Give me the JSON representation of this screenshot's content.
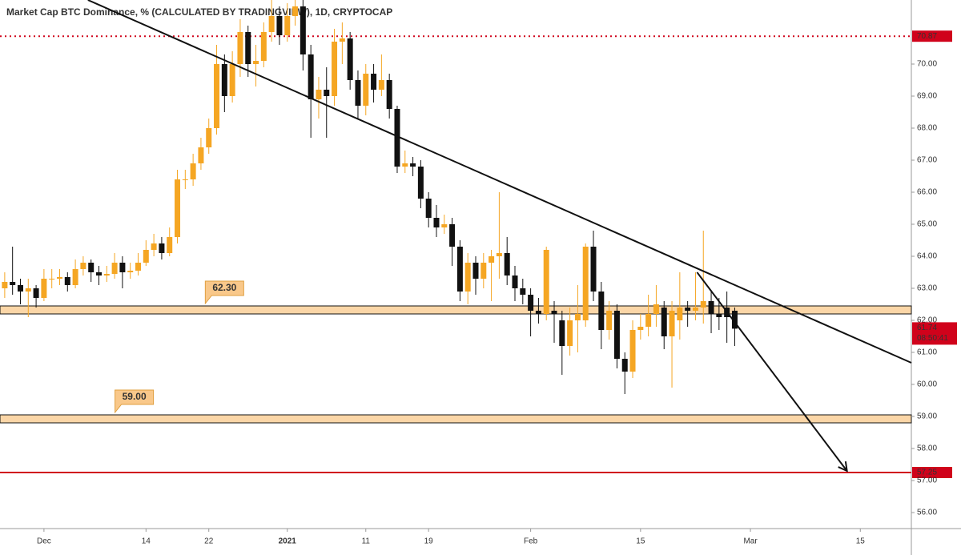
{
  "chart_data": {
    "type": "candlestick",
    "title": "Market Cap BTC Dominance, % (CALCULATED BY TRADINGVIEW), 1D, CRYPTOCAP",
    "up_color": "#f5a623",
    "down_color": "#111111",
    "x": [
      -5,
      -4,
      -3,
      -2,
      -1,
      0,
      1,
      2,
      3,
      4,
      5,
      6,
      7,
      8,
      9,
      10,
      11,
      12,
      13,
      14,
      15,
      16,
      17,
      18,
      19,
      20,
      21,
      22,
      23,
      24,
      25,
      26,
      27,
      28,
      29,
      30,
      31,
      32,
      33,
      34,
      35,
      36,
      37,
      38,
      39,
      40,
      41,
      42,
      43,
      44,
      45,
      46,
      47,
      48,
      49,
      50,
      51,
      52,
      53,
      54,
      55,
      56,
      57,
      58,
      59,
      60,
      61,
      62,
      63,
      64,
      65,
      66,
      67,
      68,
      69,
      70,
      71,
      72,
      73,
      74,
      75,
      76,
      77,
      78,
      79,
      80,
      81,
      82,
      83,
      84,
      85,
      86,
      87,
      88
    ],
    "open": [
      63.0,
      63.2,
      63.1,
      62.9,
      63.0,
      62.7,
      63.3,
      63.3,
      63.35,
      63.1,
      63.6,
      63.8,
      63.5,
      63.4,
      63.45,
      63.8,
      63.5,
      63.55,
      63.8,
      64.2,
      64.4,
      64.1,
      64.6,
      66.4,
      66.4,
      66.9,
      67.4,
      68.0,
      70.0,
      69.0,
      70.0,
      71.0,
      70.0,
      70.1,
      71.0,
      71.5,
      70.9,
      71.5,
      71.8,
      70.3,
      68.9,
      69.2,
      69.0,
      70.7,
      70.8,
      69.5,
      68.7,
      69.7,
      69.2,
      69.5,
      68.6,
      66.8,
      66.9,
      66.8,
      65.8,
      65.2,
      64.9,
      65.0,
      64.3,
      62.9,
      63.8,
      63.3,
      63.8,
      64.0,
      64.1,
      63.4,
      63.0,
      62.8,
      62.3,
      62.2,
      62.3,
      62.0,
      61.2,
      62.0,
      62.0,
      64.3,
      62.9,
      61.7,
      62.3,
      60.8,
      60.4,
      61.7,
      61.8,
      62.2,
      62.4,
      61.5,
      62.0,
      62.4,
      62.3,
      62.4,
      62.6,
      62.2,
      62.4,
      62.3
    ],
    "close": [
      63.2,
      63.1,
      62.9,
      63.0,
      62.7,
      63.3,
      63.3,
      63.35,
      63.1,
      63.6,
      63.8,
      63.5,
      63.4,
      63.45,
      63.8,
      63.5,
      63.55,
      63.8,
      64.2,
      64.4,
      64.1,
      64.6,
      66.4,
      66.4,
      66.9,
      67.4,
      68.0,
      70.0,
      69.0,
      70.0,
      71.0,
      70.0,
      70.1,
      71.0,
      71.5,
      70.9,
      71.5,
      71.8,
      70.3,
      68.9,
      69.2,
      69.0,
      70.7,
      70.8,
      69.5,
      68.7,
      69.7,
      69.2,
      69.5,
      68.6,
      66.8,
      66.9,
      66.8,
      65.8,
      65.2,
      64.9,
      65.0,
      64.3,
      62.9,
      63.8,
      63.3,
      63.8,
      64.0,
      64.1,
      63.4,
      63.0,
      62.8,
      62.3,
      62.2,
      64.2,
      62.2,
      61.2,
      62.0,
      62.2,
      64.3,
      62.9,
      61.7,
      62.3,
      60.8,
      60.4,
      61.7,
      61.8,
      62.2,
      62.5,
      61.5,
      62.3,
      62.4,
      62.3,
      62.4,
      62.6,
      62.2,
      62.1,
      62.1,
      61.74
    ],
    "high": [
      63.5,
      64.3,
      63.3,
      63.3,
      63.1,
      63.6,
      63.6,
      63.6,
      63.5,
      63.9,
      64.0,
      63.9,
      63.7,
      63.7,
      64.1,
      64.0,
      63.8,
      64.1,
      64.5,
      64.7,
      64.6,
      64.9,
      66.7,
      66.7,
      67.2,
      67.7,
      68.3,
      70.6,
      70.3,
      70.4,
      71.4,
      71.2,
      70.6,
      71.3,
      72.0,
      71.8,
      71.9,
      72.0,
      72.0,
      70.6,
      69.6,
      69.9,
      71.1,
      71.3,
      71.0,
      69.8,
      70.0,
      70.0,
      70.3,
      69.7,
      68.7,
      67.3,
      67.1,
      67.0,
      66.0,
      65.6,
      65.3,
      65.2,
      64.5,
      64.1,
      64.0,
      64.1,
      64.2,
      66.0,
      64.6,
      63.7,
      63.3,
      63.0,
      62.7,
      64.3,
      62.6,
      62.3,
      62.4,
      63.1,
      64.4,
      64.8,
      63.2,
      62.6,
      62.5,
      61.0,
      62.0,
      62.2,
      62.8,
      63.1,
      62.6,
      62.6,
      63.5,
      62.6,
      63.5,
      64.8,
      62.9,
      62.7,
      62.9,
      62.4
    ],
    "low": [
      62.7,
      62.8,
      62.5,
      62.1,
      62.4,
      62.6,
      63.0,
      63.1,
      62.9,
      63.0,
      63.4,
      63.2,
      63.1,
      63.2,
      63.3,
      63.0,
      63.3,
      63.4,
      63.7,
      64.0,
      63.9,
      64.0,
      64.4,
      66.1,
      66.2,
      66.7,
      67.2,
      67.8,
      68.5,
      68.8,
      69.6,
      69.6,
      69.3,
      69.9,
      70.7,
      70.6,
      70.7,
      71.2,
      69.8,
      67.7,
      68.3,
      67.7,
      68.7,
      70.0,
      69.2,
      68.3,
      68.4,
      68.8,
      69.0,
      68.3,
      66.6,
      66.6,
      66.5,
      65.5,
      64.9,
      64.6,
      64.7,
      63.7,
      62.6,
      62.5,
      62.8,
      63.0,
      62.6,
      63.3,
      63.1,
      62.6,
      62.5,
      61.5,
      61.9,
      62.0,
      61.3,
      60.3,
      60.9,
      61.0,
      61.8,
      62.6,
      61.1,
      61.4,
      60.5,
      59.7,
      60.2,
      61.4,
      61.5,
      61.8,
      61.1,
      59.9,
      61.4,
      61.8,
      62.0,
      61.9,
      61.6,
      61.7,
      61.3,
      61.2
    ],
    "xlim": [
      -5.6,
      110.5
    ],
    "ylim": [
      55.5,
      72
    ],
    "xticks": [
      {
        "value": 0,
        "label": "Dec"
      },
      {
        "value": 13,
        "label": "14"
      },
      {
        "value": 21,
        "label": "22"
      },
      {
        "value": 31,
        "label": "2021"
      },
      {
        "value": 41,
        "label": "11"
      },
      {
        "value": 49,
        "label": "19"
      },
      {
        "value": 62,
        "label": "Feb"
      },
      {
        "value": 76,
        "label": "15"
      },
      {
        "value": 90,
        "label": "Mar"
      },
      {
        "value": 104,
        "label": "15"
      }
    ],
    "yticks": [
      {
        "value": 56,
        "label": "56.00"
      },
      {
        "value": 57,
        "label": "57.00"
      },
      {
        "value": 58,
        "label": "58.00"
      },
      {
        "value": 59,
        "label": "59.00"
      },
      {
        "value": 60,
        "label": "60.00"
      },
      {
        "value": 61,
        "label": "61.00"
      },
      {
        "value": 62,
        "label": "62.00"
      },
      {
        "value": 63,
        "label": "63.00"
      },
      {
        "value": 64,
        "label": "64.00"
      },
      {
        "value": 65,
        "label": "65.00"
      },
      {
        "value": 66,
        "label": "66.00"
      },
      {
        "value": 67,
        "label": "67.00"
      },
      {
        "value": 68,
        "label": "68.00"
      },
      {
        "value": 69,
        "label": "69.00"
      },
      {
        "value": 70,
        "label": "70.00"
      }
    ],
    "grid": false,
    "zones": [
      {
        "from": 62.2,
        "to": 62.45,
        "value": 62.3,
        "label": "62.30",
        "label_x": 23
      },
      {
        "from": 58.8,
        "to": 59.05,
        "value": 59,
        "label": "59.00",
        "label_x": 11.5
      }
    ],
    "levels": [
      {
        "value": 70.87,
        "label": "70.87",
        "color": "#d0021b",
        "style": "dotted"
      },
      {
        "value": 57.25,
        "label": "57.25",
        "color": "#d0021b",
        "style": "solid"
      }
    ],
    "trendline": {
      "x": [
        5.6,
        110.5
      ],
      "y": [
        72,
        60.675
      ]
    },
    "arrow": {
      "x": [
        83.2,
        102.3
      ],
      "y": [
        63.5,
        57.3
      ]
    },
    "last_price": {
      "value": 61.74,
      "label": "61.74",
      "countdown": "08:50:41"
    }
  }
}
